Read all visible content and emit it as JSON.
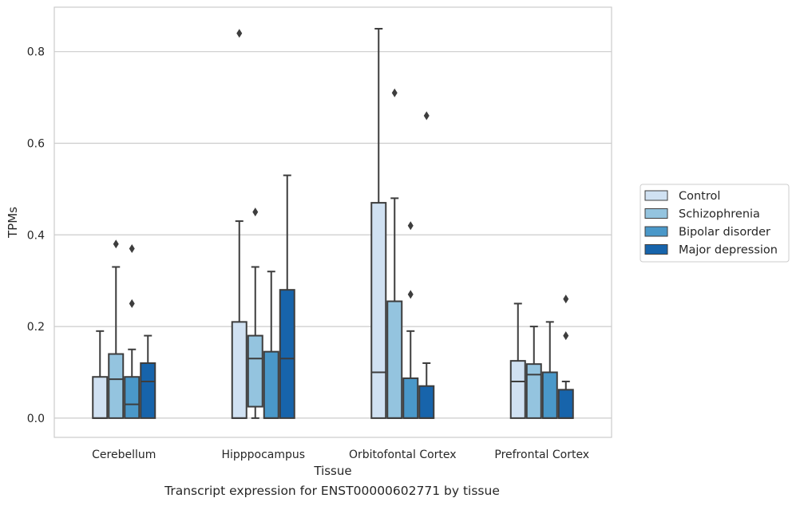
{
  "caption": "Transcript expression for ENST00000602771 by tissue",
  "chart_data": {
    "type": "box",
    "xlabel": "Tissue",
    "ylabel": "TPMs",
    "ylim": [
      -0.042,
      0.897
    ],
    "yticks": [
      0.0,
      0.2,
      0.4,
      0.6,
      0.8
    ],
    "ytick_labels": [
      "0.0",
      "0.2",
      "0.4",
      "0.6",
      "0.8"
    ],
    "grid": "horizontal",
    "legend_position": "right",
    "categories": [
      "Cerebellum",
      "Hipppocampus",
      "Orbitofontal Cortex",
      "Prefrontal Cortex"
    ],
    "series": [
      {
        "name": "Control",
        "color": "#d0e1f2",
        "boxes": [
          {
            "whislo": 0.0,
            "q1": 0.0,
            "med": 0.0,
            "q3": 0.09,
            "whishi": 0.19,
            "fliers": []
          },
          {
            "whislo": 0.0,
            "q1": 0.0,
            "med": 0.0,
            "q3": 0.21,
            "whishi": 0.43,
            "fliers": [
              0.84
            ]
          },
          {
            "whislo": 0.0,
            "q1": 0.0,
            "med": 0.1,
            "q3": 0.47,
            "whishi": 0.85,
            "fliers": []
          },
          {
            "whislo": 0.0,
            "q1": 0.0,
            "med": 0.08,
            "q3": 0.125,
            "whishi": 0.25,
            "fliers": []
          }
        ]
      },
      {
        "name": "Schizophrenia",
        "color": "#94c4df",
        "boxes": [
          {
            "whislo": 0.0,
            "q1": 0.0,
            "med": 0.085,
            "q3": 0.14,
            "whishi": 0.33,
            "fliers": [
              0.38
            ]
          },
          {
            "whislo": 0.0,
            "q1": 0.025,
            "med": 0.13,
            "q3": 0.18,
            "whishi": 0.33,
            "fliers": [
              0.45
            ]
          },
          {
            "whislo": 0.0,
            "q1": 0.0,
            "med": 0.0,
            "q3": 0.255,
            "whishi": 0.48,
            "fliers": [
              0.71
            ]
          },
          {
            "whislo": 0.0,
            "q1": 0.0,
            "med": 0.095,
            "q3": 0.118,
            "whishi": 0.2,
            "fliers": []
          }
        ]
      },
      {
        "name": "Bipolar disorder",
        "color": "#4a98c9",
        "boxes": [
          {
            "whislo": 0.0,
            "q1": 0.0,
            "med": 0.03,
            "q3": 0.09,
            "whishi": 0.15,
            "fliers": [
              0.25,
              0.37
            ]
          },
          {
            "whislo": 0.0,
            "q1": 0.0,
            "med": 0.0,
            "q3": 0.145,
            "whishi": 0.32,
            "fliers": []
          },
          {
            "whislo": 0.0,
            "q1": 0.0,
            "med": 0.0,
            "q3": 0.087,
            "whishi": 0.19,
            "fliers": [
              0.27,
              0.42
            ]
          },
          {
            "whislo": 0.0,
            "q1": 0.0,
            "med": 0.0,
            "q3": 0.1,
            "whishi": 0.21,
            "fliers": []
          }
        ]
      },
      {
        "name": "Major depression",
        "color": "#1764ab",
        "boxes": [
          {
            "whislo": 0.0,
            "q1": 0.0,
            "med": 0.08,
            "q3": 0.12,
            "whishi": 0.18,
            "fliers": []
          },
          {
            "whislo": 0.0,
            "q1": 0.0,
            "med": 0.13,
            "q3": 0.28,
            "whishi": 0.53,
            "fliers": []
          },
          {
            "whislo": 0.0,
            "q1": 0.0,
            "med": 0.0,
            "q3": 0.07,
            "whishi": 0.12,
            "fliers": [
              0.66
            ]
          },
          {
            "whislo": 0.0,
            "q1": 0.0,
            "med": 0.0,
            "q3": 0.062,
            "whishi": 0.08,
            "fliers": [
              0.18,
              0.26
            ]
          }
        ]
      }
    ]
  }
}
